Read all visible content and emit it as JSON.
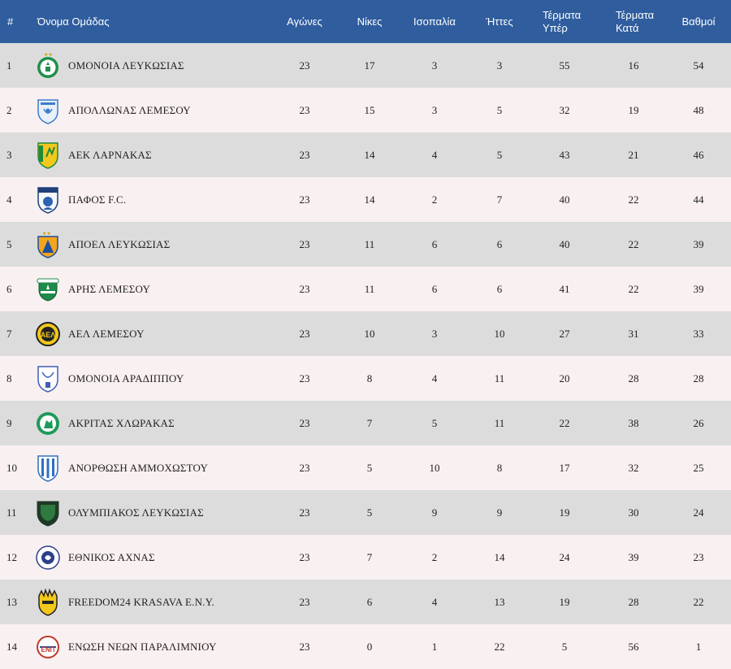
{
  "headers": {
    "rank": "#",
    "team": "Όνομα Ομάδας",
    "played": "Αγώνες",
    "wins": "Νίκες",
    "draws": "Ισοπαλία",
    "losses": "Ήττες",
    "goals_for_1": "Τέρματα",
    "goals_for_2": "Υπέρ",
    "goals_against_1": "Τέρματα",
    "goals_against_2": "Κατά",
    "points": "Βαθμοί"
  },
  "rows": [
    {
      "rank": "1",
      "team": "ΟΜΟΝΟΙΑ ΛΕΥΚΩΣΙΑΣ",
      "logo": "omonoia-crest-icon",
      "played": "23",
      "wins": "17",
      "draws": "3",
      "losses": "3",
      "gf": "55",
      "ga": "16",
      "pts": "54"
    },
    {
      "rank": "2",
      "team": "ΑΠΟΛΛΩΝΑΣ ΛΕΜΕΣΟΥ",
      "logo": "apollon-crest-icon",
      "played": "23",
      "wins": "15",
      "draws": "3",
      "losses": "5",
      "gf": "32",
      "ga": "19",
      "pts": "48"
    },
    {
      "rank": "3",
      "team": "ΑΕΚ ΛΑΡΝΑΚΑΣ",
      "logo": "aek-crest-icon",
      "played": "23",
      "wins": "14",
      "draws": "4",
      "losses": "5",
      "gf": "43",
      "ga": "21",
      "pts": "46"
    },
    {
      "rank": "4",
      "team": "ΠΑΦΟΣ F.C.",
      "logo": "pafos-crest-icon",
      "played": "23",
      "wins": "14",
      "draws": "2",
      "losses": "7",
      "gf": "40",
      "ga": "22",
      "pts": "44"
    },
    {
      "rank": "5",
      "team": "ΑΠΟΕΛ ΛΕΥΚΩΣΙΑΣ",
      "logo": "apoel-crest-icon",
      "played": "23",
      "wins": "11",
      "draws": "6",
      "losses": "6",
      "gf": "40",
      "ga": "22",
      "pts": "39"
    },
    {
      "rank": "6",
      "team": "ΑΡΗΣ ΛΕΜΕΣΟΥ",
      "logo": "aris-crest-icon",
      "played": "23",
      "wins": "11",
      "draws": "6",
      "losses": "6",
      "gf": "41",
      "ga": "22",
      "pts": "39"
    },
    {
      "rank": "7",
      "team": "ΑΕΛ ΛΕΜΕΣΟΥ",
      "logo": "ael-crest-icon",
      "played": "23",
      "wins": "10",
      "draws": "3",
      "losses": "10",
      "gf": "27",
      "ga": "31",
      "pts": "33"
    },
    {
      "rank": "8",
      "team": "ΟΜΟΝΟΙΑ ΑΡΑΔΙΠΠΟΥ",
      "logo": "omonoia-aradippou-crest-icon",
      "played": "23",
      "wins": "8",
      "draws": "4",
      "losses": "11",
      "gf": "20",
      "ga": "28",
      "pts": "28"
    },
    {
      "rank": "9",
      "team": "ΑΚΡΙΤΑΣ ΧΛΩΡΑΚΑΣ",
      "logo": "akritas-crest-icon",
      "played": "23",
      "wins": "7",
      "draws": "5",
      "losses": "11",
      "gf": "22",
      "ga": "38",
      "pts": "26"
    },
    {
      "rank": "10",
      "team": "ΑΝΟΡΘΩΣΗ ΑΜΜΟΧΩΣΤΟΥ",
      "logo": "anorthosis-crest-icon",
      "played": "23",
      "wins": "5",
      "draws": "10",
      "losses": "8",
      "gf": "17",
      "ga": "32",
      "pts": "25"
    },
    {
      "rank": "11",
      "team": "ΟΛΥΜΠΙΑΚΟΣ ΛΕΥΚΩΣΙΑΣ",
      "logo": "olympiakos-crest-icon",
      "played": "23",
      "wins": "5",
      "draws": "9",
      "losses": "9",
      "gf": "19",
      "ga": "30",
      "pts": "24"
    },
    {
      "rank": "12",
      "team": "ΕΘΝΙΚΟΣ ΑΧΝΑΣ",
      "logo": "ethnikos-crest-icon",
      "played": "23",
      "wins": "7",
      "draws": "2",
      "losses": "14",
      "gf": "24",
      "ga": "39",
      "pts": "23"
    },
    {
      "rank": "13",
      "team": "FREEDOM24 KRASAVA E.N.Y.",
      "logo": "krasava-crest-icon",
      "played": "23",
      "wins": "6",
      "draws": "4",
      "losses": "13",
      "gf": "19",
      "ga": "28",
      "pts": "22"
    },
    {
      "rank": "14",
      "team": "ΕΝΩΣΗ ΝΕΩΝ ΠΑΡΑΛΙΜΝΙΟΥ",
      "logo": "enp-crest-icon",
      "played": "23",
      "wins": "0",
      "draws": "1",
      "losses": "22",
      "gf": "5",
      "ga": "56",
      "pts": "1"
    }
  ]
}
